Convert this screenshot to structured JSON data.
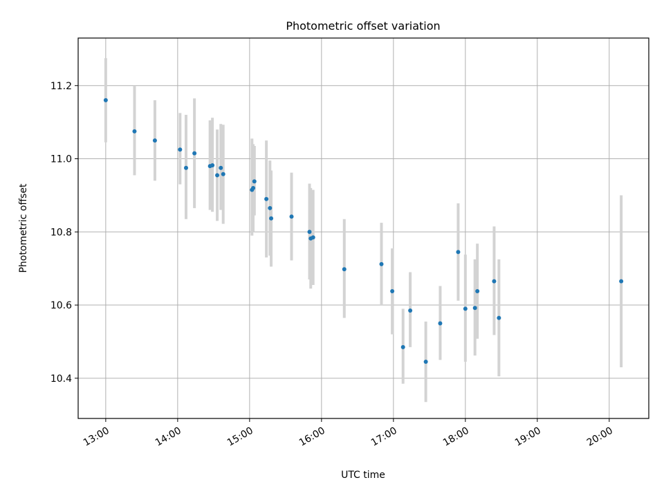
{
  "chart_data": {
    "type": "scatter",
    "title": "Photometric offset variation",
    "xlabel": "UTC time",
    "ylabel": "Photometric offset",
    "x_format": "HH:MM",
    "xlim": [
      "12:37",
      "20:33"
    ],
    "ylim": [
      10.29,
      11.33
    ],
    "xticks": [
      "13:00",
      "14:00",
      "15:00",
      "16:00",
      "17:00",
      "18:00",
      "19:00",
      "20:00"
    ],
    "yticks": [
      10.4,
      10.6,
      10.8,
      11.0,
      11.2
    ],
    "grid": true,
    "legend": "none",
    "colors": {
      "point": "#1f77b4",
      "errorbar": "#d3d3d3",
      "grid": "#b0b0b0"
    },
    "points": [
      {
        "x": "13:00",
        "y": 11.16,
        "ylo": 11.045,
        "yhi": 11.275
      },
      {
        "x": "13:24",
        "y": 11.075,
        "ylo": 10.955,
        "yhi": 11.2
      },
      {
        "x": "13:41",
        "y": 11.05,
        "ylo": 10.94,
        "yhi": 11.16
      },
      {
        "x": "14:02",
        "y": 11.025,
        "ylo": 10.93,
        "yhi": 11.125
      },
      {
        "x": "14:07",
        "y": 10.975,
        "ylo": 10.835,
        "yhi": 11.12
      },
      {
        "x": "14:14",
        "y": 11.015,
        "ylo": 10.865,
        "yhi": 11.165
      },
      {
        "x": "14:27",
        "y": 10.98,
        "ylo": 10.86,
        "yhi": 11.105
      },
      {
        "x": "14:29",
        "y": 10.982,
        "ylo": 10.855,
        "yhi": 11.112
      },
      {
        "x": "14:33",
        "y": 10.955,
        "ylo": 10.83,
        "yhi": 11.08
      },
      {
        "x": "14:36",
        "y": 10.975,
        "ylo": 10.86,
        "yhi": 11.095
      },
      {
        "x": "14:38",
        "y": 10.958,
        "ylo": 10.822,
        "yhi": 11.093
      },
      {
        "x": "15:02",
        "y": 10.915,
        "ylo": 10.79,
        "yhi": 11.055
      },
      {
        "x": "15:03",
        "y": 10.92,
        "ylo": 10.8,
        "yhi": 11.04
      },
      {
        "x": "15:04",
        "y": 10.938,
        "ylo": 10.845,
        "yhi": 11.035
      },
      {
        "x": "15:14",
        "y": 10.89,
        "ylo": 10.73,
        "yhi": 11.05
      },
      {
        "x": "15:17",
        "y": 10.865,
        "ylo": 10.735,
        "yhi": 10.995
      },
      {
        "x": "15:18",
        "y": 10.837,
        "ylo": 10.705,
        "yhi": 10.968
      },
      {
        "x": "15:35",
        "y": 10.842,
        "ylo": 10.722,
        "yhi": 10.962
      },
      {
        "x": "15:50",
        "y": 10.8,
        "ylo": 10.67,
        "yhi": 10.932
      },
      {
        "x": "15:51",
        "y": 10.782,
        "ylo": 10.645,
        "yhi": 10.92
      },
      {
        "x": "15:53",
        "y": 10.785,
        "ylo": 10.655,
        "yhi": 10.915
      },
      {
        "x": "16:19",
        "y": 10.698,
        "ylo": 10.565,
        "yhi": 10.835
      },
      {
        "x": "16:50",
        "y": 10.712,
        "ylo": 10.6,
        "yhi": 10.825
      },
      {
        "x": "16:59",
        "y": 10.638,
        "ylo": 10.52,
        "yhi": 10.755
      },
      {
        "x": "17:08",
        "y": 10.485,
        "ylo": 10.385,
        "yhi": 10.59
      },
      {
        "x": "17:14",
        "y": 10.585,
        "ylo": 10.485,
        "yhi": 10.69
      },
      {
        "x": "17:27",
        "y": 10.445,
        "ylo": 10.335,
        "yhi": 10.555
      },
      {
        "x": "17:39",
        "y": 10.55,
        "ylo": 10.45,
        "yhi": 10.652
      },
      {
        "x": "17:54",
        "y": 10.745,
        "ylo": 10.612,
        "yhi": 10.878
      },
      {
        "x": "18:00",
        "y": 10.59,
        "ylo": 10.445,
        "yhi": 10.738
      },
      {
        "x": "18:08",
        "y": 10.592,
        "ylo": 10.462,
        "yhi": 10.725
      },
      {
        "x": "18:10",
        "y": 10.638,
        "ylo": 10.508,
        "yhi": 10.768
      },
      {
        "x": "18:24",
        "y": 10.665,
        "ylo": 10.518,
        "yhi": 10.815
      },
      {
        "x": "18:28",
        "y": 10.565,
        "ylo": 10.405,
        "yhi": 10.725
      },
      {
        "x": "20:10",
        "y": 10.665,
        "ylo": 10.43,
        "yhi": 10.9
      }
    ]
  }
}
